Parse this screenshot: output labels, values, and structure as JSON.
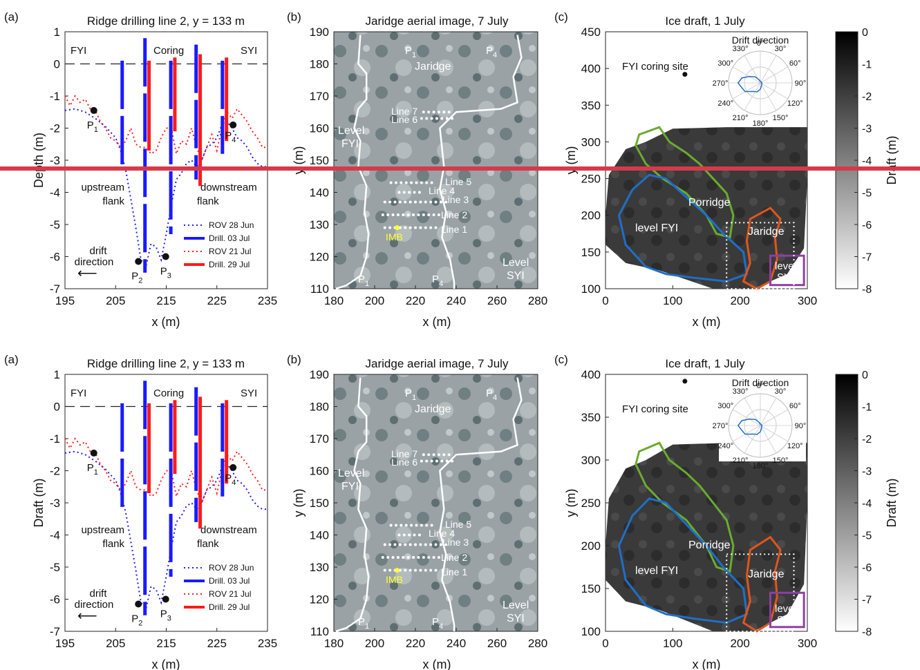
{
  "figure_rows": [
    {
      "row_id": "top",
      "panel_a": {
        "label": "(a)",
        "title": "Ridge drilling line 2, y = 133 m",
        "ylabel": "Depth (m)",
        "xlabel": "x (m)",
        "xticks": [
          "195",
          "205",
          "215",
          "225",
          "235"
        ],
        "yticks": [
          "1",
          "0",
          "-1",
          "-2",
          "-3",
          "-4",
          "-5",
          "-6",
          "-7"
        ],
        "annotations": {
          "fyi": "FYI",
          "coring": "Coring",
          "syi": "SYI",
          "upstream": "upstream",
          "upstream2": "flank",
          "downstream": "downstream",
          "downstream2": "flank",
          "drift": "drift",
          "drift2": "direction",
          "arrow": "⟵",
          "p1": "P",
          "p1s": "1",
          "p2": "P",
          "p2s": "2",
          "p3": "P",
          "p3s": "3",
          "p4": "P",
          "p4s": "4"
        },
        "legend": [
          "ROV 28 Jun",
          "Drill. 03 Jul",
          "ROV 21 Jul",
          "Drill. 29 Jul"
        ]
      },
      "panel_b": {
        "label": "(b)",
        "title": "Jaridge aerial image, 7 July",
        "ylabel": "y (m)",
        "xlabel": "x (m)",
        "xticks": [
          "180",
          "200",
          "220",
          "240",
          "260",
          "280"
        ],
        "yticks": [
          "190",
          "180",
          "170",
          "160",
          "150",
          "140",
          "130",
          "120",
          "110"
        ],
        "annotations": {
          "p1t": "P",
          "p1ts": "1",
          "p4t": "P",
          "p4ts": "4",
          "jaridge": "Jaridge",
          "line7": "Line 7",
          "line6": "Line 6",
          "line5": "Line 5",
          "line4": "Line 4",
          "line3": "Line 3",
          "line2": "Line 2",
          "line1": "Line 1",
          "imb": "IMB",
          "level_fyi": "Level",
          "level_fyi2": "FYI",
          "level_syi": "Level",
          "level_syi2": "SYI",
          "p1b": "P",
          "p1bs": "1",
          "p4b": "P",
          "p4bs": "4"
        }
      },
      "panel_c": {
        "label": "(c)",
        "title": "Ice draft, 1 July",
        "ylabel": "y (m)",
        "xlabel": "x (m)",
        "xticks": [
          "0",
          "100",
          "200",
          "300"
        ],
        "yticks": [
          "450",
          "400",
          "350",
          "300",
          "250",
          "200",
          "150",
          "100"
        ],
        "annotations": {
          "coring_site": "FYI coring site",
          "drift_title": "Drift direction",
          "porridge": "Porridge",
          "level_fyi": "level FYI",
          "jaridge": "Jaridge",
          "level_syi": "level",
          "level_syi2": "SYI"
        },
        "polar_labels": [
          "0°",
          "30°",
          "60°",
          "90°",
          "120°",
          "150°",
          "180°",
          "210°",
          "240°",
          "270°",
          "300°",
          "330°"
        ],
        "colorbar": {
          "label": "Draft (m)",
          "ticks": [
            "0",
            "-1",
            "-2",
            "-3",
            "-4",
            "-5",
            "-6",
            "-7",
            "-8"
          ]
        }
      }
    },
    {
      "row_id": "bottom",
      "panel_a": {
        "label": "(a)",
        "title": "Ridge drilling line 2, y = 133 m",
        "ylabel": "Draft (m)",
        "xlabel": "x (m)",
        "xticks": [
          "195",
          "205",
          "215",
          "225",
          "235"
        ],
        "yticks": [
          "1",
          "0",
          "-1",
          "-2",
          "-3",
          "-4",
          "-5",
          "-6",
          "-7"
        ],
        "annotations": {
          "fyi": "FYI",
          "coring": "Coring",
          "syi": "SYI",
          "upstream": "upstream",
          "upstream2": "flank",
          "downstream": "downstream",
          "downstream2": "flank",
          "drift": "drift",
          "drift2": "direction",
          "arrow": "⟵",
          "p1": "P",
          "p1s": "1",
          "p2": "P",
          "p2s": "2",
          "p3": "P",
          "p3s": "3",
          "p4": "P",
          "p4s": "4"
        },
        "legend": [
          "ROV 28 Jun",
          "Drill. 03 Jul",
          "ROV 21 Jul",
          "Drill. 29 Jul"
        ]
      },
      "panel_b": {
        "label": "(b)",
        "title": "Jaridge aerial image, 7 July",
        "ylabel": "y (m)",
        "xlabel": "x (m)",
        "xticks": [
          "180",
          "200",
          "220",
          "240",
          "260",
          "280"
        ],
        "yticks": [
          "190",
          "180",
          "170",
          "160",
          "150",
          "140",
          "130",
          "120",
          "110"
        ],
        "annotations": {
          "p1t": "P",
          "p1ts": "1",
          "p4t": "P",
          "p4ts": "4",
          "jaridge": "Jaridge",
          "line7": "Line 7",
          "line6": "Line 6",
          "line5": "Line 5",
          "line4": "Line 4",
          "line3": "Line 3",
          "line2": "Line 2",
          "line1": "Line 1",
          "imb": "IMB",
          "level_fyi": "Level",
          "level_fyi2": "FYI",
          "level_syi": "Level",
          "level_syi2": "SYI",
          "p1b": "P",
          "p1bs": "1",
          "p4b": "P",
          "p4bs": "4"
        }
      },
      "panel_c": {
        "label": "(c)",
        "title": "Ice draft, 1 July",
        "ylabel": "y (m)",
        "xlabel": "x (m)",
        "xticks": [
          "0",
          "100",
          "200",
          "300"
        ],
        "yticks": [
          "400",
          "350",
          "300",
          "250",
          "200",
          "150",
          "100"
        ],
        "annotations": {
          "coring_site": "FYI coring site",
          "drift_title": "Drift direction",
          "porridge": "Porridge",
          "level_fyi": "level FYI",
          "jaridge": "Jaridge",
          "level_syi": "level",
          "level_syi2": "SYI"
        },
        "polar_labels": [
          "0°",
          "30°",
          "60°",
          "90°",
          "120°",
          "150°",
          "180°",
          "210°",
          "240°",
          "270°",
          "300°",
          "330°"
        ],
        "colorbar": {
          "label": "Draft (m)",
          "ticks": [
            "0",
            "-1",
            "-2",
            "-3",
            "-4",
            "-5",
            "-6",
            "-7",
            "-8"
          ]
        }
      }
    }
  ],
  "colors": {
    "rov_jun": "#1a1aff",
    "drill_jul03": "#1a1aff",
    "rov_jul": "#ff1a1a",
    "drill_jul29": "#ff1a1a",
    "divider": "#d63a4a",
    "porridge": "#6aac2e",
    "level_fyi": "#1f6fc9",
    "jaridge": "#e0561c",
    "level_syi": "#8e3fa3",
    "polar": "#1f6fc9"
  },
  "chart_data": [
    {
      "type": "line",
      "title": "Ridge drilling line 2, y = 133 m",
      "xlabel": "x (m)",
      "ylabel": "Depth (m)",
      "xlim": [
        195,
        235
      ],
      "ylim": [
        -7,
        1
      ],
      "series": [
        {
          "name": "ROV 28 Jun",
          "style": "dotted",
          "x": [
            195,
            197,
            199,
            201,
            203,
            205,
            206,
            207,
            208,
            209,
            210,
            211,
            212,
            213,
            214,
            215,
            216,
            217,
            218,
            219,
            220,
            221,
            222,
            223,
            224,
            225,
            226,
            227,
            228,
            229,
            230,
            231,
            232,
            233,
            234,
            235
          ],
          "y": [
            -1.45,
            -1.4,
            -1.5,
            -1.7,
            -1.95,
            -2.3,
            -2.7,
            -3.3,
            -4.2,
            -5.1,
            -6.1,
            -6.3,
            -5.6,
            -5.7,
            -6.1,
            -5.3,
            -4.4,
            -3.6,
            -3.4,
            -3.1,
            -3.0,
            -3.2,
            -3.0,
            -2.6,
            -2.5,
            -2.3,
            -1.9,
            -1.8,
            -2.0,
            -2.3,
            -2.4,
            -2.6,
            -2.9,
            -3.1,
            -3.2,
            -3.2
          ]
        },
        {
          "name": "ROV 21 Jul",
          "style": "dotted",
          "x": [
            195,
            196,
            197,
            198,
            199,
            200,
            201,
            202,
            203,
            204,
            205,
            206,
            207,
            208,
            209,
            210,
            211,
            212,
            213,
            214,
            215,
            216,
            217,
            218,
            219,
            220,
            221,
            222,
            223,
            224,
            225,
            226,
            227,
            228,
            229,
            230,
            231,
            232,
            233,
            234,
            235
          ],
          "y": [
            -1.0,
            -1.3,
            -1.0,
            -1.2,
            -1.1,
            -1.4,
            -1.45,
            -1.8,
            -2.0,
            -2.3,
            -2.4,
            -2.6,
            -2.4,
            -2.0,
            -2.5,
            -2.6,
            -2.6,
            -2.8,
            -2.7,
            -2.3,
            -2.0,
            -2.0,
            -2.8,
            -2.4,
            -2.5,
            -2.0,
            -2.6,
            -3.0,
            -2.6,
            -2.2,
            -2.7,
            -2.0,
            -1.5,
            -1.7,
            -1.4,
            -1.6,
            -1.8,
            -2.1,
            -2.3,
            -2.6,
            -2.6
          ]
        },
        {
          "name": "Drill. 03 Jul",
          "style": "bars",
          "x": [
            206.3,
            210.8,
            215.9,
            220.9,
            226.1
          ],
          "top": [
            0.1,
            0.8,
            0.1,
            0.6,
            0.1
          ],
          "bottom": [
            -3.3,
            -6.5,
            -5.3,
            -3.6,
            -2.8
          ]
        },
        {
          "name": "Drill. 29 Jul",
          "style": "bars",
          "x": [
            211.6,
            216.7,
            221.7,
            226.9
          ],
          "top": [
            0.1,
            0.2,
            0.3,
            0.2
          ],
          "bottom": [
            -2.7,
            -2.1,
            -3.8,
            -2.4
          ]
        }
      ]
    },
    {
      "type": "heatmap",
      "title": "Ice draft, 1 July",
      "xlabel": "x (m)",
      "ylabel": "y (m)",
      "colorbar_label": "Draft (m)",
      "colorbar_range": [
        -8,
        0
      ],
      "points": [
        {
          "label": "FYI coring site",
          "x": 118,
          "y": 392
        }
      ],
      "polar_inset": {
        "title": "Drift direction",
        "angles_deg": [
          0,
          30,
          60,
          90,
          120,
          150,
          180,
          210,
          240,
          270,
          300,
          330
        ]
      }
    }
  ]
}
